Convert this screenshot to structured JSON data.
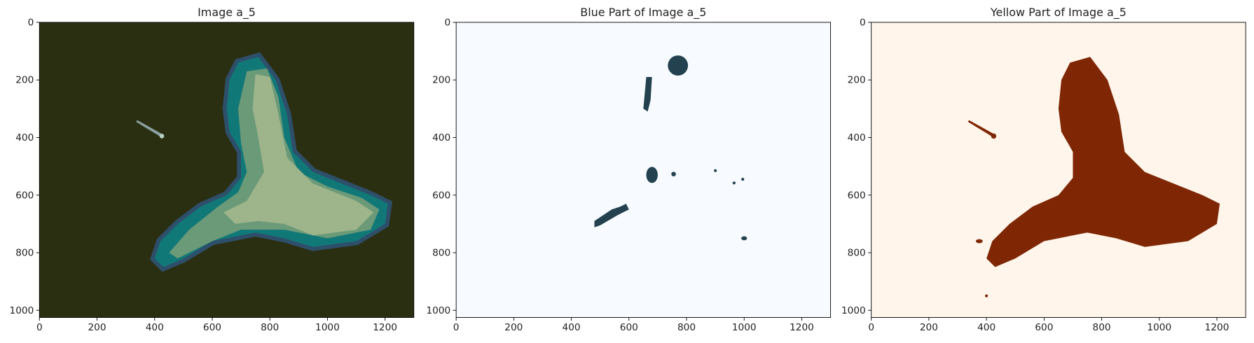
{
  "chart_data": [
    {
      "type": "image",
      "title": "Image a_5",
      "xlim": [
        0,
        1300
      ],
      "ylim": [
        1025,
        0
      ],
      "xticks": [
        0,
        200,
        400,
        600,
        800,
        1000,
        1200
      ],
      "yticks": [
        0,
        200,
        400,
        600,
        800,
        1000
      ],
      "background": "#2b2f12"
    },
    {
      "type": "image",
      "title": "Blue Part of Image a_5",
      "xlim": [
        0,
        1300
      ],
      "ylim": [
        1025,
        0
      ],
      "xticks": [
        0,
        200,
        400,
        600,
        800,
        1000,
        1200
      ],
      "yticks": [
        0,
        200,
        400,
        600,
        800,
        1000
      ],
      "background": "#f7fbff"
    },
    {
      "type": "image",
      "title": "Yellow Part of Image a_5",
      "xlim": [
        0,
        1300
      ],
      "ylim": [
        1025,
        0
      ],
      "xticks": [
        0,
        200,
        400,
        600,
        800,
        1000,
        1200
      ],
      "yticks": [
        0,
        200,
        400,
        600,
        800,
        1000
      ],
      "background": "#fff5eb"
    }
  ]
}
